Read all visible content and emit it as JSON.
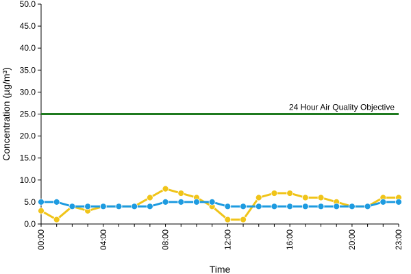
{
  "chart_data": {
    "type": "line",
    "title": "",
    "xlabel": "Time",
    "ylabel": "Concentration (µg/m³)",
    "ylim": [
      0,
      50
    ],
    "y_ticks": [
      "0.0",
      "5.0",
      "10.0",
      "15.0",
      "20.0",
      "25.0",
      "30.0",
      "35.0",
      "40.0",
      "45.0",
      "50.0"
    ],
    "x_ticks": [
      {
        "hour": 0,
        "label": "00:00"
      },
      {
        "hour": 4,
        "label": "04:00"
      },
      {
        "hour": 8,
        "label": "08:00"
      },
      {
        "hour": 12,
        "label": "12:00"
      },
      {
        "hour": 16,
        "label": "16:00"
      },
      {
        "hour": 20,
        "label": "20:00"
      },
      {
        "hour": 23,
        "label": "23:00"
      }
    ],
    "x": [
      0,
      1,
      2,
      3,
      4,
      5,
      6,
      7,
      8,
      9,
      10,
      11,
      12,
      13,
      14,
      15,
      16,
      17,
      18,
      19,
      20,
      21,
      22,
      23
    ],
    "grid": false,
    "legend": "none",
    "series": [
      {
        "color": "#f0c419",
        "values": [
          3,
          1,
          4,
          3,
          4,
          4,
          4,
          6,
          8,
          7,
          6,
          4,
          1,
          1,
          6,
          7,
          7,
          6,
          6,
          5,
          4,
          4,
          6,
          6
        ]
      },
      {
        "color": "#1e9be0",
        "values": [
          5,
          5,
          4,
          4,
          4,
          4,
          4,
          4,
          5,
          5,
          5,
          5,
          4,
          4,
          4,
          4,
          4,
          4,
          4,
          4,
          4,
          4,
          5,
          5
        ]
      }
    ],
    "objective": {
      "value": 25,
      "label": "24 Hour Air Quality Objective",
      "color": "#1f7a1f"
    }
  }
}
